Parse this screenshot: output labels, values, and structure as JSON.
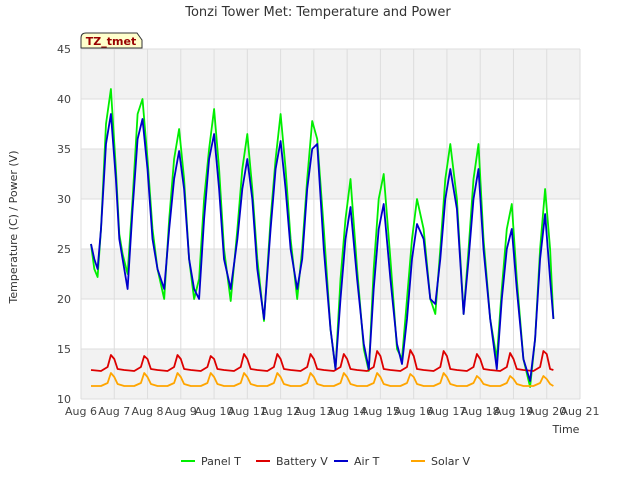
{
  "chart_data": {
    "type": "line",
    "title": "Tonzi Tower Met: Temperature and Power",
    "xlabel": "Time",
    "ylabel": "Temperature (C) / Power (V)",
    "xlim": [
      6,
      21
    ],
    "ylim": [
      10,
      45
    ],
    "x_ticks": [
      6,
      7,
      8,
      9,
      10,
      11,
      12,
      13,
      14,
      15,
      16,
      17,
      18,
      19,
      20,
      21
    ],
    "x_tick_labels": [
      "Aug 6",
      "Aug 7",
      "Aug 8",
      "Aug 9",
      "Aug 10",
      "Aug 11",
      "Aug 12",
      "Aug 13",
      "Aug 14",
      "Aug 15",
      "Aug 16",
      "Aug 17",
      "Aug 18",
      "Aug 19",
      "Aug 20",
      "Aug 21"
    ],
    "y_ticks": [
      10,
      15,
      20,
      25,
      30,
      35,
      40,
      45
    ],
    "y_tick_labels": [
      "10",
      "15",
      "20",
      "25",
      "30",
      "35",
      "40",
      "45"
    ],
    "site_tag": "TZ_tmet",
    "legend_position": "bottom-center",
    "series": [
      {
        "name": "Panel T",
        "color": "#00ee00",
        "x": [
          6.3,
          6.4,
          6.5,
          6.6,
          6.75,
          6.9,
          7.05,
          7.15,
          7.25,
          7.4,
          7.55,
          7.7,
          7.85,
          8.0,
          8.15,
          8.3,
          8.5,
          8.65,
          8.8,
          8.95,
          9.1,
          9.25,
          9.4,
          9.55,
          9.7,
          9.85,
          10.0,
          10.15,
          10.3,
          10.5,
          10.7,
          10.85,
          11.0,
          11.15,
          11.3,
          11.5,
          11.7,
          11.85,
          12.0,
          12.15,
          12.3,
          12.5,
          12.65,
          12.8,
          12.95,
          13.1,
          13.3,
          13.5,
          13.65,
          13.8,
          13.95,
          14.1,
          14.3,
          14.5,
          14.65,
          14.8,
          14.95,
          15.1,
          15.3,
          15.5,
          15.65,
          15.8,
          15.95,
          16.1,
          16.3,
          16.5,
          16.65,
          16.8,
          16.95,
          17.1,
          17.3,
          17.5,
          17.65,
          17.8,
          17.95,
          18.1,
          18.3,
          18.5,
          18.65,
          18.8,
          18.95,
          19.1,
          19.3,
          19.5,
          19.65,
          19.8,
          19.95,
          20.1,
          20.2
        ],
        "y": [
          25.5,
          23.0,
          22.2,
          27.0,
          37.5,
          41.0,
          33.0,
          26.5,
          24.5,
          22.5,
          30.0,
          38.5,
          40.0,
          34.0,
          27.0,
          23.0,
          20.0,
          28.0,
          34.0,
          37.0,
          32.0,
          24.0,
          20.0,
          22.0,
          30.0,
          35.0,
          39.0,
          33.0,
          25.0,
          19.8,
          27.0,
          33.0,
          36.5,
          31.0,
          24.0,
          17.8,
          28.0,
          34.0,
          38.5,
          33.0,
          26.0,
          20.0,
          25.0,
          32.0,
          37.8,
          36.0,
          27.0,
          17.0,
          13.0,
          22.0,
          28.0,
          32.0,
          23.0,
          15.0,
          12.8,
          23.0,
          30.0,
          32.5,
          24.0,
          15.0,
          14.0,
          20.0,
          26.0,
          30.0,
          27.0,
          20.0,
          18.5,
          25.0,
          32.0,
          35.5,
          30.0,
          18.5,
          25.0,
          32.0,
          35.5,
          26.0,
          18.0,
          14.0,
          21.0,
          27.0,
          29.5,
          22.0,
          14.0,
          11.2,
          16.0,
          25.0,
          31.0,
          25.0,
          18.0
        ]
      },
      {
        "name": "Battery V",
        "color": "#dd0000",
        "x": [
          6.3,
          6.6,
          6.8,
          6.9,
          7.0,
          7.1,
          7.3,
          7.6,
          7.8,
          7.9,
          8.0,
          8.1,
          8.3,
          8.6,
          8.8,
          8.9,
          9.0,
          9.1,
          9.3,
          9.6,
          9.8,
          9.9,
          10.0,
          10.1,
          10.3,
          10.6,
          10.8,
          10.9,
          11.0,
          11.1,
          11.3,
          11.6,
          11.8,
          11.9,
          12.0,
          12.1,
          12.3,
          12.6,
          12.8,
          12.9,
          13.0,
          13.1,
          13.3,
          13.6,
          13.8,
          13.9,
          14.0,
          14.1,
          14.3,
          14.6,
          14.8,
          14.9,
          15.0,
          15.1,
          15.3,
          15.6,
          15.8,
          15.9,
          16.0,
          16.1,
          16.3,
          16.6,
          16.8,
          16.9,
          17.0,
          17.1,
          17.3,
          17.6,
          17.8,
          17.9,
          18.0,
          18.1,
          18.3,
          18.6,
          18.8,
          18.9,
          19.0,
          19.1,
          19.3,
          19.6,
          19.8,
          19.9,
          20.0,
          20.1,
          20.2
        ],
        "y": [
          12.9,
          12.8,
          13.2,
          14.4,
          14.0,
          13.0,
          12.9,
          12.8,
          13.2,
          14.3,
          14.0,
          13.0,
          12.9,
          12.8,
          13.2,
          14.4,
          14.0,
          13.0,
          12.9,
          12.8,
          13.2,
          14.3,
          14.0,
          13.0,
          12.9,
          12.8,
          13.2,
          14.5,
          14.0,
          13.0,
          12.9,
          12.8,
          13.2,
          14.5,
          14.0,
          13.0,
          12.9,
          12.8,
          13.2,
          14.5,
          14.0,
          13.0,
          12.9,
          12.8,
          13.2,
          14.5,
          14.0,
          13.0,
          12.9,
          12.8,
          13.2,
          14.8,
          14.3,
          13.0,
          12.9,
          12.8,
          13.2,
          14.9,
          14.3,
          13.0,
          12.9,
          12.8,
          13.2,
          14.8,
          14.3,
          13.0,
          12.9,
          12.8,
          13.2,
          14.5,
          14.0,
          13.0,
          12.9,
          12.8,
          13.2,
          14.6,
          14.0,
          13.0,
          12.9,
          12.8,
          13.2,
          14.8,
          14.5,
          13.0,
          12.9
        ]
      },
      {
        "name": "Air T",
        "color": "#0000cc",
        "x": [
          6.3,
          6.4,
          6.5,
          6.6,
          6.75,
          6.9,
          7.05,
          7.15,
          7.25,
          7.4,
          7.55,
          7.7,
          7.85,
          8.0,
          8.15,
          8.3,
          8.5,
          8.65,
          8.8,
          8.95,
          9.1,
          9.25,
          9.4,
          9.55,
          9.7,
          9.85,
          10.0,
          10.15,
          10.3,
          10.5,
          10.7,
          10.85,
          11.0,
          11.15,
          11.3,
          11.5,
          11.7,
          11.85,
          12.0,
          12.15,
          12.3,
          12.5,
          12.65,
          12.8,
          12.95,
          13.1,
          13.3,
          13.5,
          13.65,
          13.8,
          13.95,
          14.1,
          14.3,
          14.5,
          14.65,
          14.8,
          14.95,
          15.1,
          15.3,
          15.5,
          15.65,
          15.8,
          15.95,
          16.1,
          16.3,
          16.5,
          16.65,
          16.8,
          16.95,
          17.1,
          17.3,
          17.5,
          17.65,
          17.8,
          17.95,
          18.1,
          18.3,
          18.5,
          18.65,
          18.8,
          18.95,
          19.1,
          19.3,
          19.5,
          19.65,
          19.8,
          19.95,
          20.1,
          20.2
        ],
        "y": [
          25.5,
          24.0,
          23.0,
          27.0,
          35.5,
          38.5,
          32.0,
          26.0,
          24.0,
          21.0,
          29.0,
          36.0,
          38.0,
          33.0,
          26.0,
          23.0,
          21.0,
          27.0,
          32.0,
          34.8,
          31.0,
          24.0,
          21.0,
          20.0,
          28.0,
          34.0,
          36.5,
          31.0,
          24.0,
          21.0,
          26.0,
          31.0,
          34.0,
          30.0,
          23.0,
          18.0,
          27.0,
          33.0,
          35.8,
          31.0,
          25.0,
          21.0,
          24.0,
          31.0,
          35.0,
          35.5,
          25.0,
          17.0,
          13.0,
          20.0,
          26.0,
          29.2,
          22.0,
          15.5,
          13.0,
          21.0,
          27.0,
          29.5,
          22.0,
          15.5,
          13.5,
          18.0,
          24.0,
          27.5,
          26.0,
          20.0,
          19.5,
          24.0,
          30.0,
          33.0,
          29.0,
          18.5,
          24.0,
          30.0,
          33.0,
          25.0,
          18.0,
          13.0,
          20.0,
          25.0,
          27.0,
          21.0,
          14.0,
          11.8,
          16.0,
          24.0,
          28.5,
          22.0,
          18.0
        ]
      },
      {
        "name": "Solar V",
        "color": "#ffa500",
        "x": [
          6.3,
          6.6,
          6.8,
          6.9,
          7.0,
          7.1,
          7.3,
          7.6,
          7.8,
          7.9,
          8.0,
          8.1,
          8.3,
          8.6,
          8.8,
          8.9,
          9.0,
          9.1,
          9.3,
          9.6,
          9.8,
          9.9,
          10.0,
          10.1,
          10.3,
          10.6,
          10.8,
          10.9,
          11.0,
          11.1,
          11.3,
          11.6,
          11.8,
          11.9,
          12.0,
          12.1,
          12.3,
          12.6,
          12.8,
          12.9,
          13.0,
          13.1,
          13.3,
          13.6,
          13.8,
          13.9,
          14.0,
          14.1,
          14.3,
          14.6,
          14.8,
          14.9,
          15.0,
          15.1,
          15.3,
          15.6,
          15.8,
          15.9,
          16.0,
          16.1,
          16.3,
          16.6,
          16.8,
          16.9,
          17.0,
          17.1,
          17.3,
          17.6,
          17.8,
          17.9,
          18.0,
          18.1,
          18.3,
          18.6,
          18.8,
          18.9,
          19.0,
          19.1,
          19.3,
          19.6,
          19.8,
          19.9,
          20.0,
          20.1,
          20.2
        ],
        "y": [
          11.3,
          11.3,
          11.6,
          12.6,
          12.2,
          11.5,
          11.3,
          11.3,
          11.6,
          12.6,
          12.2,
          11.5,
          11.3,
          11.3,
          11.6,
          12.6,
          12.2,
          11.5,
          11.3,
          11.3,
          11.6,
          12.6,
          12.2,
          11.5,
          11.3,
          11.3,
          11.6,
          12.6,
          12.2,
          11.5,
          11.3,
          11.3,
          11.6,
          12.6,
          12.2,
          11.5,
          11.3,
          11.3,
          11.6,
          12.6,
          12.2,
          11.5,
          11.3,
          11.3,
          11.6,
          12.6,
          12.2,
          11.5,
          11.3,
          11.3,
          11.6,
          12.6,
          12.2,
          11.5,
          11.3,
          11.3,
          11.6,
          12.5,
          12.2,
          11.5,
          11.3,
          11.3,
          11.6,
          12.6,
          12.2,
          11.5,
          11.3,
          11.3,
          11.6,
          12.3,
          12.0,
          11.5,
          11.3,
          11.3,
          11.6,
          12.3,
          12.0,
          11.5,
          11.3,
          11.3,
          11.6,
          12.3,
          12.0,
          11.5,
          11.3
        ]
      }
    ]
  }
}
